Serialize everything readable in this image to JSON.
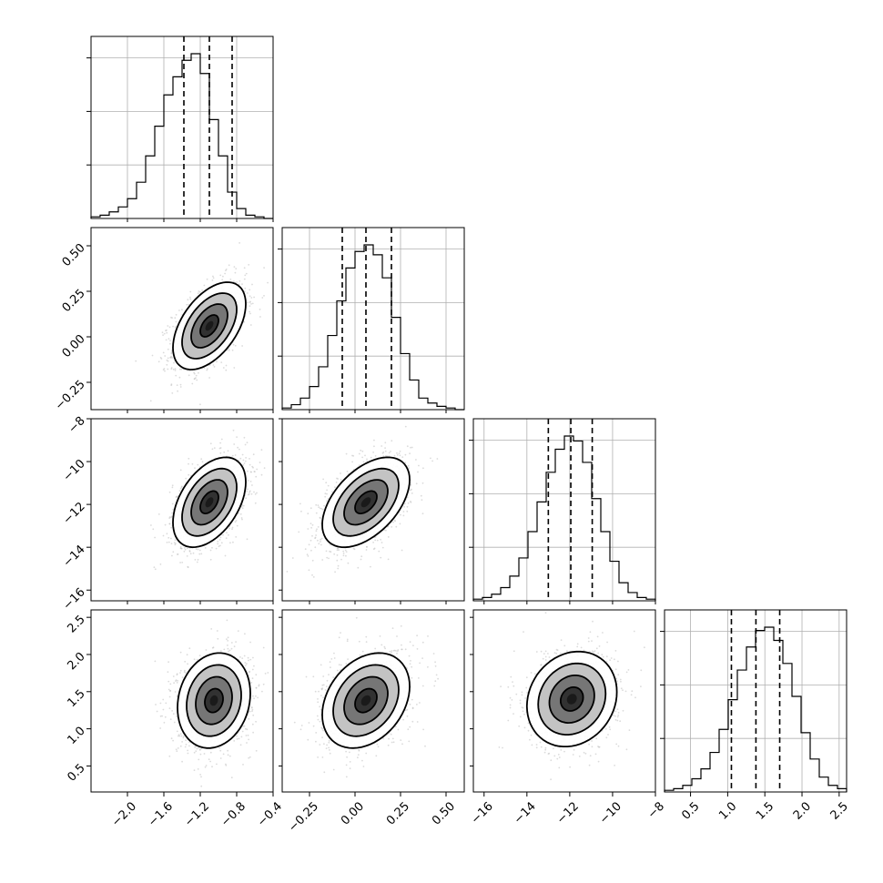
{
  "chart_data": {
    "type": "corner",
    "n_parameters": 4,
    "parameters": [
      {
        "axis_label": "",
        "range": [
          -2.4,
          -0.4
        ],
        "ticks": [
          -2.0,
          -1.6,
          -1.2,
          -0.8,
          -0.4
        ],
        "tick_labels": [
          "−2.0",
          "−1.6",
          "−1.2",
          "−0.8",
          "−0.4"
        ],
        "quantiles": [
          -1.38,
          -1.1,
          -0.85
        ],
        "hist_bin_start": -2.4,
        "hist_bin_width": 0.1,
        "hist_counts": [
          0.01,
          0.02,
          0.04,
          0.07,
          0.12,
          0.22,
          0.38,
          0.56,
          0.75,
          0.86,
          0.96,
          1.0,
          0.88,
          0.6,
          0.38,
          0.16,
          0.06,
          0.02,
          0.01,
          0.0
        ]
      },
      {
        "axis_label": "",
        "range": [
          -0.4,
          0.6
        ],
        "ticks": [
          -0.25,
          0.0,
          0.25,
          0.5
        ],
        "tick_labels": [
          "−0.25",
          "0.00",
          "0.25",
          "0.50"
        ],
        "quantiles": [
          -0.07,
          0.06,
          0.2
        ],
        "hist_bin_start": -0.4,
        "hist_bin_width": 0.05,
        "hist_counts": [
          0.01,
          0.03,
          0.07,
          0.14,
          0.26,
          0.45,
          0.66,
          0.86,
          0.96,
          1.0,
          0.94,
          0.8,
          0.56,
          0.34,
          0.18,
          0.07,
          0.04,
          0.02,
          0.01,
          0.0
        ]
      },
      {
        "axis_label": "",
        "range": [
          -16.5,
          -8.0
        ],
        "ticks": [
          -16,
          -14,
          -12,
          -10,
          -8
        ],
        "tick_labels": [
          "−16",
          "−14",
          "−12",
          "−10",
          "−8"
        ],
        "quantiles": [
          -13.0,
          -11.95,
          -10.95
        ],
        "hist_bin_start": -16.5,
        "hist_bin_width": 0.425,
        "hist_counts": [
          0.01,
          0.02,
          0.04,
          0.08,
          0.15,
          0.26,
          0.42,
          0.6,
          0.78,
          0.92,
          1.0,
          0.97,
          0.84,
          0.62,
          0.42,
          0.24,
          0.11,
          0.05,
          0.02,
          0.01
        ]
      },
      {
        "axis_label": "",
        "range": [
          0.15,
          2.6
        ],
        "ticks": [
          0.5,
          1.0,
          1.5,
          2.0,
          2.5
        ],
        "tick_labels": [
          "0.5",
          "1.0",
          "1.5",
          "2.0",
          "2.5"
        ],
        "quantiles": [
          1.05,
          1.38,
          1.7
        ],
        "hist_bin_start": 0.15,
        "hist_bin_width": 0.1225,
        "hist_counts": [
          0.01,
          0.02,
          0.04,
          0.08,
          0.14,
          0.24,
          0.38,
          0.56,
          0.74,
          0.88,
          0.98,
          1.0,
          0.92,
          0.78,
          0.58,
          0.36,
          0.2,
          0.09,
          0.04,
          0.02
        ]
      }
    ],
    "pair_panels": [
      {
        "row": 1,
        "col": 0,
        "center": [
          -1.1,
          0.06
        ],
        "sigma": [
          0.2,
          0.12
        ],
        "rho": 0.5
      },
      {
        "row": 2,
        "col": 0,
        "center": [
          -1.1,
          -11.9
        ],
        "sigma": [
          0.2,
          1.05
        ],
        "rho": 0.45
      },
      {
        "row": 2,
        "col": 1,
        "center": [
          0.06,
          -11.9
        ],
        "sigma": [
          0.12,
          1.05
        ],
        "rho": 0.5
      },
      {
        "row": 3,
        "col": 0,
        "center": [
          -1.05,
          1.38
        ],
        "sigma": [
          0.2,
          0.32
        ],
        "rho": 0.15
      },
      {
        "row": 3,
        "col": 1,
        "center": [
          0.06,
          1.38
        ],
        "sigma": [
          0.12,
          0.32
        ],
        "rho": 0.3
      },
      {
        "row": 3,
        "col": 2,
        "center": [
          -11.9,
          1.4
        ],
        "sigma": [
          1.05,
          0.32
        ],
        "rho": 0.15
      }
    ],
    "contour_levels_sigma": [
      0.5,
      1.0,
      1.5,
      2.0
    ],
    "grid": true,
    "legend": "none",
    "title": "",
    "colors": {
      "points": "#bdbdbd",
      "lines": "#000000",
      "density_dark": "#1a1a1a"
    }
  }
}
